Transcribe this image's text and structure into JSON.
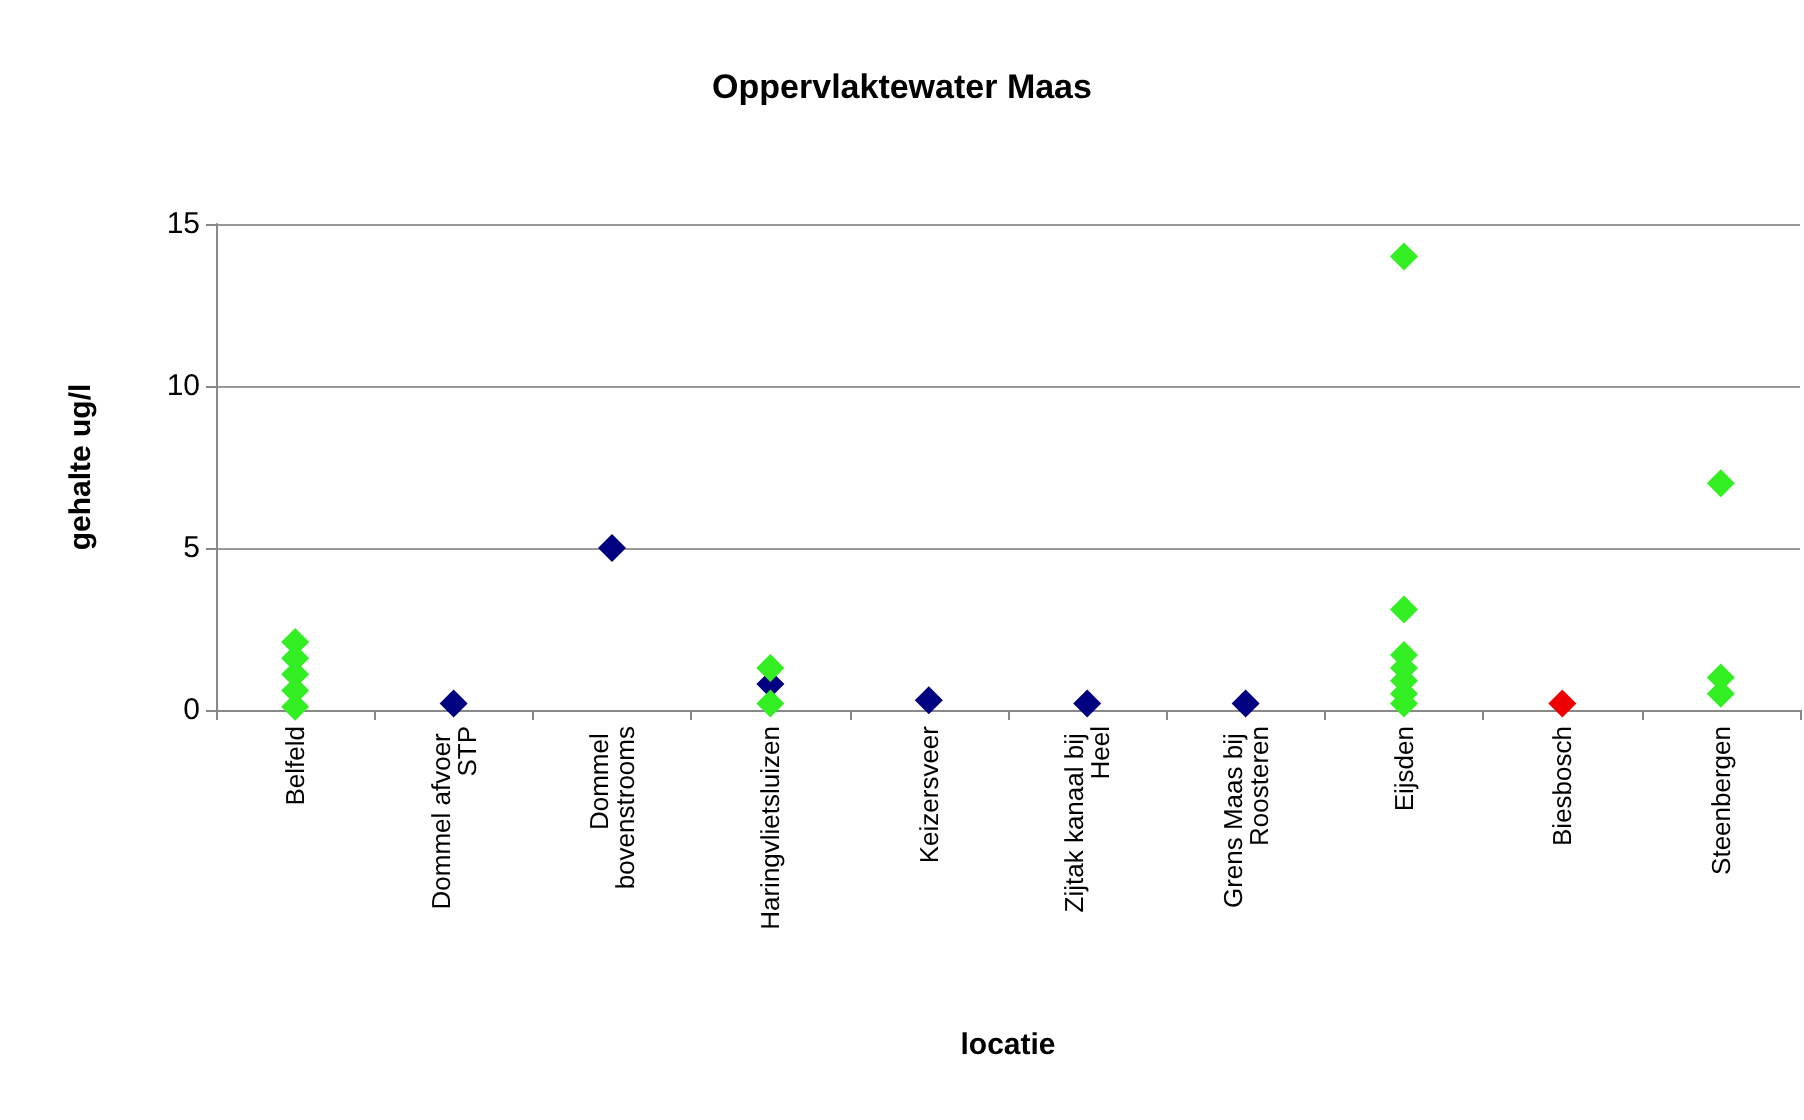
{
  "chart_data": {
    "type": "scatter",
    "title": "Oppervlaktewater Maas",
    "xlabel": "locatie",
    "ylabel": "gehalte ug/l",
    "categories": [
      "Belfeld",
      "Dommel afvoer STP",
      "Dommel bovenstrooms",
      "Haringvlietsluizen",
      "Keizersveer",
      "Zijtak kanaal bij Heel",
      "Grens Maas bij Roosteren",
      "Eijsden",
      "Biesbosch",
      "Steenbergen"
    ],
    "series": [
      {
        "color": "#000080",
        "x": [
          "Dommel afvoer STP",
          "Dommel bovenstrooms",
          "Haringvlietsluizen",
          "Keizersveer",
          "Zijtak kanaal bij Heel",
          "Grens Maas bij Roosteren"
        ],
        "values": [
          0.2,
          5.0,
          0.8,
          0.3,
          0.2,
          0.2
        ]
      },
      {
        "color": "#33ee22",
        "x": [
          "Belfeld",
          "Belfeld",
          "Belfeld",
          "Belfeld",
          "Belfeld",
          "Haringvlietsluizen",
          "Haringvlietsluizen",
          "Eijsden",
          "Eijsden",
          "Eijsden",
          "Eijsden",
          "Eijsden",
          "Eijsden",
          "Eijsden",
          "Steenbergen",
          "Steenbergen",
          "Steenbergen"
        ],
        "values": [
          2.1,
          1.6,
          1.1,
          0.6,
          0.1,
          1.3,
          0.2,
          14.0,
          3.1,
          1.7,
          1.3,
          0.9,
          0.5,
          0.2,
          7.0,
          1.0,
          0.5
        ]
      },
      {
        "color": "#ee0000",
        "x": [
          "Biesbosch"
        ],
        "values": [
          0.2
        ]
      }
    ],
    "ylim": [
      0,
      15
    ],
    "yticks": [
      0,
      5,
      10,
      15
    ],
    "grid": "y",
    "marker": "diamond"
  }
}
